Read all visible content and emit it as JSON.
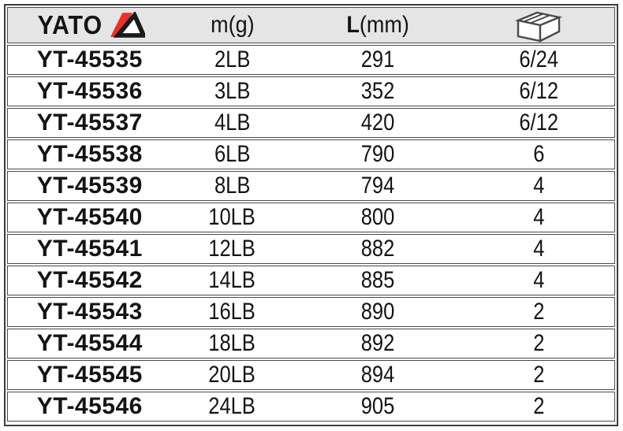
{
  "colors": {
    "brand_red": "#e8312a",
    "header_bg": "#e5e5e5",
    "outer_border": "#3c3c3c",
    "row_border": "#4a4a4a",
    "text": "#141414"
  },
  "table": {
    "brand": "YATO",
    "headers": {
      "code": "",
      "weight": "m(g)",
      "length_bold": "L",
      "length_rest": "(mm)",
      "pack_icon": "carton-box-icon"
    },
    "rows": [
      {
        "code": "YT-45535",
        "weight": "2LB",
        "length": "291",
        "pack": "6/24"
      },
      {
        "code": "YT-45536",
        "weight": "3LB",
        "length": "352",
        "pack": "6/12"
      },
      {
        "code": "YT-45537",
        "weight": "4LB",
        "length": "420",
        "pack": "6/12"
      },
      {
        "code": "YT-45538",
        "weight": "6LB",
        "length": "790",
        "pack": "6"
      },
      {
        "code": "YT-45539",
        "weight": "8LB",
        "length": "794",
        "pack": "4"
      },
      {
        "code": "YT-45540",
        "weight": "10LB",
        "length": "800",
        "pack": "4"
      },
      {
        "code": "YT-45541",
        "weight": "12LB",
        "length": "882",
        "pack": "4"
      },
      {
        "code": "YT-45542",
        "weight": "14LB",
        "length": "885",
        "pack": "4"
      },
      {
        "code": "YT-45543",
        "weight": "16LB",
        "length": "890",
        "pack": "2"
      },
      {
        "code": "YT-45544",
        "weight": "18LB",
        "length": "892",
        "pack": "2"
      },
      {
        "code": "YT-45545",
        "weight": "20LB",
        "length": "894",
        "pack": "2"
      },
      {
        "code": "YT-45546",
        "weight": "24LB",
        "length": "905",
        "pack": "2"
      }
    ]
  }
}
